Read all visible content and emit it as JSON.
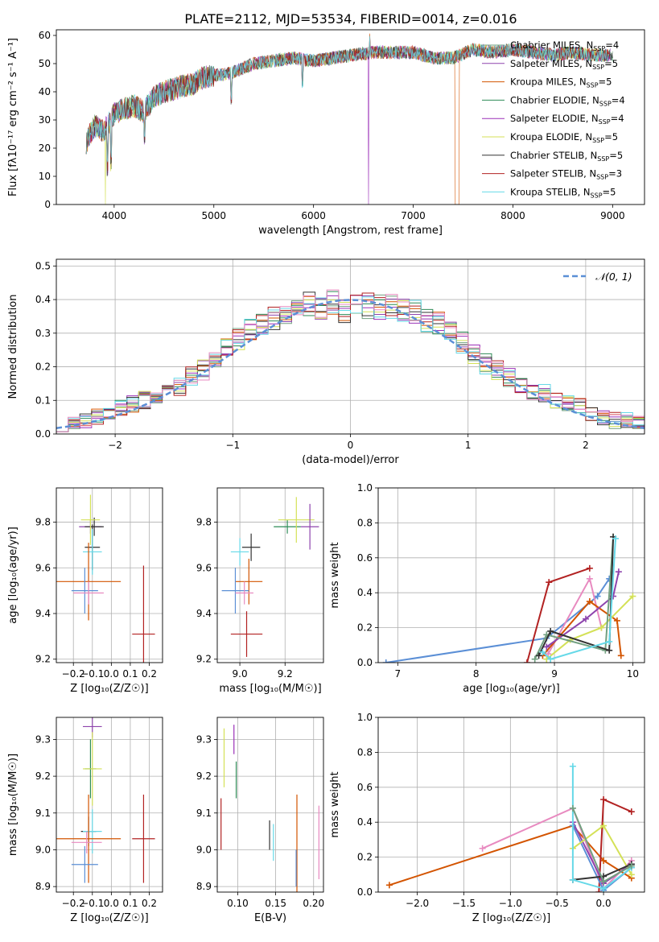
{
  "figure": {
    "title": "PLATE=2112, MJD=53534, FIBERID=0014, z=0.016"
  },
  "colors": {
    "palette": [
      "#72a080",
      "#8e44ad",
      "#d35400",
      "#2e8b57",
      "#9b30b8",
      "#d4e157",
      "#333333",
      "#b22222",
      "#66d9e8"
    ],
    "normal": "#5b8fd6"
  },
  "chart_data": [
    {
      "id": "spectrum",
      "type": "line",
      "title": "PLATE=2112, MJD=53534, FIBERID=0014, z=0.016",
      "xlabel": "wavelength [Angstrom, rest frame]",
      "ylabel": "Flux [fλ10⁻¹⁷ erg cm⁻² s⁻¹ A⁻¹]",
      "xlim": [
        3420,
        9320
      ],
      "ylim": [
        0,
        62
      ],
      "xticks": [
        4000,
        5000,
        6000,
        7000,
        8000,
        9000
      ],
      "yticks": [
        0,
        10,
        20,
        30,
        40,
        50,
        60
      ],
      "grid": false,
      "legend": "top-right",
      "continuum": {
        "x": [
          3720,
          3800,
          3900,
          4000,
          4100,
          4200,
          4300,
          4400,
          4500,
          4600,
          4700,
          4800,
          4900,
          5000,
          5100,
          5200,
          5400,
          5600,
          5800,
          6000,
          6200,
          6400,
          6600,
          6800,
          7000,
          7200,
          7400,
          7600,
          7800,
          8000,
          8200,
          8400,
          8600,
          8800,
          9000
        ],
        "y": [
          22,
          28,
          26,
          32,
          34,
          35,
          33,
          38,
          40,
          41,
          42,
          43,
          45,
          46,
          46,
          47,
          50,
          51,
          52,
          51,
          52,
          53,
          54,
          54,
          54,
          52,
          52,
          55,
          54,
          55,
          54,
          53,
          54,
          53,
          53
        ]
      },
      "series": [
        {
          "name": "Chabrier MILES, N_SSP=4",
          "color": "#72a080"
        },
        {
          "name": "Salpeter MILES, N_SSP=5",
          "color": "#8e44ad"
        },
        {
          "name": "Kroupa MILES, N_SSP=5",
          "color": "#d35400"
        },
        {
          "name": "Chabrier ELODIE, N_SSP=4",
          "color": "#2e8b57"
        },
        {
          "name": "Salpeter ELODIE, N_SSP=4",
          "color": "#9b30b8"
        },
        {
          "name": "Kroupa ELODIE, N_SSP=5",
          "color": "#d4e157"
        },
        {
          "name": "Chabrier STELIB, N_SSP=5",
          "color": "#333333"
        },
        {
          "name": "Salpeter STELIB, N_SSP=3",
          "color": "#b22222"
        },
        {
          "name": "Kroupa STELIB, N_SSP=5",
          "color": "#66d9e8"
        }
      ],
      "legend_labels": [
        {
          "pre": "Chabrier MILES, N",
          "sub": "SSP",
          "post": "=4"
        },
        {
          "pre": "Salpeter MILES, N",
          "sub": "SSP",
          "post": "=5"
        },
        {
          "pre": "Kroupa MILES, N",
          "sub": "SSP",
          "post": "=5"
        },
        {
          "pre": "Chabrier ELODIE, N",
          "sub": "SSP",
          "post": "=4"
        },
        {
          "pre": "Salpeter ELODIE, N",
          "sub": "SSP",
          "post": "=4"
        },
        {
          "pre": "Kroupa ELODIE, N",
          "sub": "SSP",
          "post": "=5"
        },
        {
          "pre": "Chabrier STELIB, N",
          "sub": "SSP",
          "post": "=5"
        },
        {
          "pre": "Salpeter STELIB, N",
          "sub": "SSP",
          "post": "=3"
        },
        {
          "pre": "Kroupa STELIB, N",
          "sub": "SSP",
          "post": "=5"
        }
      ]
    },
    {
      "id": "residuals",
      "type": "line",
      "xlabel": "(data-model)/error",
      "ylabel": "Normed distribution",
      "xlim": [
        -2.5,
        2.5
      ],
      "ylim": [
        0,
        0.52
      ],
      "xticks": [
        -2,
        -1,
        0,
        1,
        2
      ],
      "yticks": [
        0.0,
        0.1,
        0.2,
        0.3,
        0.4,
        0.5
      ],
      "grid": true,
      "legend": "top-right",
      "normal_label": "𝒩(0, 1)",
      "hist_centers": [
        -2.45,
        -2.35,
        -2.25,
        -2.15,
        -2.05,
        -1.95,
        -1.85,
        -1.75,
        -1.65,
        -1.55,
        -1.45,
        -1.35,
        -1.25,
        -1.15,
        -1.05,
        -0.95,
        -0.85,
        -0.75,
        -0.65,
        -0.55,
        -0.45,
        -0.35,
        -0.25,
        -0.15,
        -0.05,
        0.05,
        0.15,
        0.25,
        0.35,
        0.45,
        0.55,
        0.65,
        0.75,
        0.85,
        0.95,
        1.05,
        1.15,
        1.25,
        1.35,
        1.45,
        1.55,
        1.65,
        1.75,
        1.85,
        1.95,
        2.05,
        2.15,
        2.25,
        2.35,
        2.45
      ],
      "base_hist": [
        0.03,
        0.04,
        0.04,
        0.05,
        0.06,
        0.08,
        0.09,
        0.1,
        0.12,
        0.13,
        0.14,
        0.17,
        0.19,
        0.22,
        0.25,
        0.28,
        0.31,
        0.32,
        0.34,
        0.36,
        0.38,
        0.39,
        0.37,
        0.39,
        0.37,
        0.39,
        0.38,
        0.38,
        0.38,
        0.37,
        0.36,
        0.34,
        0.33,
        0.31,
        0.27,
        0.24,
        0.21,
        0.19,
        0.17,
        0.15,
        0.13,
        0.12,
        0.1,
        0.09,
        0.08,
        0.06,
        0.05,
        0.04,
        0.04,
        0.03
      ],
      "normal_pdf_mu": 0,
      "normal_pdf_sigma": 1
    },
    {
      "id": "age-vs-Z",
      "type": "scatter",
      "xlabel": "Z [log₁₀(Z/Z☉)]",
      "ylabel": "age  [log₁₀(age/yr)]",
      "xlim": [
        -0.29,
        0.27
      ],
      "ylim": [
        9.185,
        9.95
      ],
      "xticks": [
        -0.2,
        -0.1,
        0.0,
        0.1,
        0.2
      ],
      "yticks": [
        9.2,
        9.4,
        9.6,
        9.8
      ],
      "grid": true,
      "points": [
        {
          "x": -0.11,
          "y": 9.78,
          "xerr": 0.06,
          "yerr": 0.03,
          "color": "#8e44ad"
        },
        {
          "x": -0.09,
          "y": 9.78,
          "xerr": 0.05,
          "yerr": 0.04,
          "color": "#333333"
        },
        {
          "x": -0.11,
          "y": 9.81,
          "xerr": 0.05,
          "yerr": 0.11,
          "color": "#d4e157"
        },
        {
          "x": -0.1,
          "y": 9.69,
          "xerr": 0.04,
          "yerr": 0.1,
          "color": "#333333"
        },
        {
          "x": -0.1,
          "y": 9.67,
          "xerr": 0.05,
          "yerr": 0.1,
          "color": "#66d9e8"
        },
        {
          "x": -0.12,
          "y": 9.54,
          "xerr": 0.17,
          "yerr": 0.17,
          "color": "#d35400"
        },
        {
          "x": -0.14,
          "y": 9.5,
          "xerr": 0.07,
          "yerr": 0.1,
          "color": "#5b8fd6"
        },
        {
          "x": -0.12,
          "y": 9.49,
          "xerr": 0.08,
          "yerr": 0.05,
          "color": "#e88ac0"
        },
        {
          "x": 0.17,
          "y": 9.31,
          "xerr": 0.06,
          "yerr": 0.3,
          "color": "#b22222"
        }
      ]
    },
    {
      "id": "age-vs-mass",
      "type": "scatter",
      "xlabel": "mass [log₁₀(M/M☉)]",
      "ylabel": "",
      "xlim": [
        8.9,
        9.37
      ],
      "ylim": [
        9.185,
        9.95
      ],
      "xticks": [
        9.0,
        9.2
      ],
      "yticks": [
        9.2,
        9.4,
        9.6,
        9.8
      ],
      "grid": true,
      "points": [
        {
          "x": 9.21,
          "y": 9.78,
          "xerr": 0.06,
          "yerr": 0.03,
          "color": "#2e8b57"
        },
        {
          "x": 9.25,
          "y": 9.81,
          "xerr": 0.08,
          "yerr": 0.1,
          "color": "#d4e157"
        },
        {
          "x": 9.31,
          "y": 9.78,
          "xerr": 0.04,
          "yerr": 0.1,
          "color": "#8e44ad"
        },
        {
          "x": 9.05,
          "y": 9.69,
          "xerr": 0.04,
          "yerr": 0.06,
          "color": "#333333"
        },
        {
          "x": 9.0,
          "y": 9.67,
          "xerr": 0.04,
          "yerr": 0.06,
          "color": "#66d9e8"
        },
        {
          "x": 9.04,
          "y": 9.54,
          "xerr": 0.06,
          "yerr": 0.1,
          "color": "#d35400"
        },
        {
          "x": 8.98,
          "y": 9.5,
          "xerr": 0.06,
          "yerr": 0.1,
          "color": "#5b8fd6"
        },
        {
          "x": 9.02,
          "y": 9.49,
          "xerr": 0.04,
          "yerr": 0.05,
          "color": "#e88ac0"
        },
        {
          "x": 9.03,
          "y": 9.31,
          "xerr": 0.07,
          "yerr": 0.1,
          "color": "#b22222"
        }
      ]
    },
    {
      "id": "massweight-vs-age",
      "type": "line",
      "xlabel": "age  [log₁₀(age/yr)]",
      "ylabel": "mass weight",
      "xlim": [
        6.75,
        10.15
      ],
      "ylim": [
        0,
        1.0
      ],
      "xticks": [
        7,
        8,
        9,
        10
      ],
      "yticks": [
        0.0,
        0.2,
        0.4,
        0.6,
        0.8,
        1.0
      ],
      "grid": true,
      "series": [
        {
          "color": "#5b8fd6",
          "x": [
            6.85,
            8.9,
            9.55,
            9.7
          ],
          "y": [
            0.0,
            0.14,
            0.38,
            0.48
          ]
        },
        {
          "color": "#b22222",
          "x": [
            8.65,
            8.93,
            9.45
          ],
          "y": [
            0.0,
            0.46,
            0.54
          ]
        },
        {
          "color": "#e88ac0",
          "x": [
            8.92,
            9.45,
            9.6
          ],
          "y": [
            0.05,
            0.48,
            0.2
          ]
        },
        {
          "color": "#d35400",
          "x": [
            8.85,
            9.45,
            9.8,
            9.85
          ],
          "y": [
            0.04,
            0.35,
            0.24,
            0.04
          ]
        },
        {
          "color": "#d4e157",
          "x": [
            8.9,
            9.2,
            9.6,
            10.0
          ],
          "y": [
            0.02,
            0.13,
            0.2,
            0.38
          ]
        },
        {
          "color": "#8e44ad",
          "x": [
            8.9,
            9.4,
            9.75,
            9.82
          ],
          "y": [
            0.09,
            0.25,
            0.38,
            0.52
          ]
        },
        {
          "color": "#72a080",
          "x": [
            8.75,
            8.9,
            9.65,
            9.75
          ],
          "y": [
            0.02,
            0.16,
            0.07,
            0.72
          ]
        },
        {
          "color": "#333333",
          "x": [
            8.8,
            8.95,
            9.7,
            9.75
          ],
          "y": [
            0.04,
            0.18,
            0.07,
            0.72
          ]
        },
        {
          "color": "#66d9e8",
          "x": [
            8.85,
            8.95,
            9.7,
            9.78
          ],
          "y": [
            0.06,
            0.02,
            0.12,
            0.71
          ]
        }
      ]
    },
    {
      "id": "mass-vs-Z",
      "type": "scatter",
      "xlabel": "Z [log₁₀(Z/Z☉)]",
      "ylabel": "mass [log₁₀(M/M☉)]",
      "xlim": [
        -0.29,
        0.27
      ],
      "ylim": [
        8.885,
        9.36
      ],
      "xticks": [
        -0.2,
        -0.1,
        0.0,
        0.1,
        0.2
      ],
      "yticks": [
        8.9,
        9.0,
        9.1,
        9.2,
        9.3
      ],
      "grid": true,
      "points": [
        {
          "x": -0.1,
          "y": 9.335,
          "xerr": 0.05,
          "yerr": 0.03,
          "color": "#8e44ad"
        },
        {
          "x": -0.11,
          "y": 9.22,
          "xerr": 0.03,
          "yerr": 0.08,
          "color": "#2e8b57"
        },
        {
          "x": -0.1,
          "y": 9.22,
          "xerr": 0.05,
          "yerr": 0.1,
          "color": "#d4e157"
        },
        {
          "x": -0.12,
          "y": 9.05,
          "xerr": 0.04,
          "yerr": 0.04,
          "color": "#333333"
        },
        {
          "x": -0.1,
          "y": 9.05,
          "xerr": 0.05,
          "yerr": 0.06,
          "color": "#66d9e8"
        },
        {
          "x": -0.12,
          "y": 9.03,
          "xerr": 0.17,
          "yerr": 0.12,
          "color": "#d35400"
        },
        {
          "x": -0.14,
          "y": 8.96,
          "xerr": 0.07,
          "yerr": 0.05,
          "color": "#5b8fd6"
        },
        {
          "x": -0.13,
          "y": 9.02,
          "xerr": 0.08,
          "yerr": 0.03,
          "color": "#e88ac0"
        },
        {
          "x": 0.17,
          "y": 9.03,
          "xerr": 0.06,
          "yerr": 0.12,
          "color": "#b22222"
        }
      ]
    },
    {
      "id": "mass-vs-EBV",
      "type": "scatter",
      "xlabel": "E(B-V)",
      "ylabel": "",
      "xlim": [
        0.073,
        0.213
      ],
      "ylim": [
        8.885,
        9.36
      ],
      "xticks": [
        0.1,
        0.15,
        0.2
      ],
      "yticks": [
        8.9,
        9.0,
        9.1,
        9.2,
        9.3
      ],
      "grid": true,
      "points": [
        {
          "x": 0.095,
          "y": 9.3,
          "yerr": 0.04,
          "color": "#9b30b8"
        },
        {
          "x": 0.098,
          "y": 9.19,
          "yerr": 0.05,
          "color": "#2e8b57"
        },
        {
          "x": 0.082,
          "y": 9.25,
          "yerr": 0.08,
          "color": "#d4e157"
        },
        {
          "x": 0.078,
          "y": 9.07,
          "yerr": 0.07,
          "color": "#b22222"
        },
        {
          "x": 0.142,
          "y": 9.04,
          "yerr": 0.04,
          "color": "#333333"
        },
        {
          "x": 0.147,
          "y": 9.02,
          "yerr": 0.05,
          "color": "#66d9e8"
        },
        {
          "x": 0.178,
          "y": 9.0,
          "yerr": 0.15,
          "color": "#d35400"
        },
        {
          "x": 0.177,
          "y": 8.95,
          "yerr": 0.05,
          "color": "#5b8fd6"
        },
        {
          "x": 0.207,
          "y": 9.02,
          "yerr": 0.1,
          "color": "#e88ac0"
        }
      ]
    },
    {
      "id": "massweight-vs-Z",
      "type": "line",
      "xlabel": "Z [log₁₀(Z/Z☉)]",
      "ylabel": "mass weight",
      "xlim": [
        -2.42,
        0.44
      ],
      "ylim": [
        0,
        1.0
      ],
      "xticks": [
        -2.0,
        -1.5,
        -1.0,
        -0.5,
        0.0
      ],
      "yticks": [
        0.0,
        0.2,
        0.4,
        0.6,
        0.8,
        1.0
      ],
      "grid": true,
      "series": [
        {
          "color": "#d35400",
          "x": [
            -2.3,
            -0.33,
            0.0,
            0.3
          ],
          "y": [
            0.04,
            0.38,
            0.18,
            0.08
          ]
        },
        {
          "color": "#e88ac0",
          "x": [
            -1.3,
            -0.33,
            0.0,
            0.3
          ],
          "y": [
            0.25,
            0.48,
            0.02,
            0.18
          ]
        },
        {
          "color": "#b22222",
          "x": [
            -0.05,
            0.0,
            0.3
          ],
          "y": [
            0.0,
            0.53,
            0.46
          ]
        },
        {
          "color": "#8e44ad",
          "x": [
            -0.33,
            0.0,
            0.3
          ],
          "y": [
            0.4,
            0.05,
            0.16
          ]
        },
        {
          "color": "#5b8fd6",
          "x": [
            -0.33,
            0.0,
            0.3
          ],
          "y": [
            0.38,
            0.01,
            0.14
          ]
        },
        {
          "color": "#d4e157",
          "x": [
            -0.33,
            0.0,
            0.3
          ],
          "y": [
            0.25,
            0.38,
            0.1
          ]
        },
        {
          "color": "#333333",
          "x": [
            -0.33,
            0.0,
            0.3
          ],
          "y": [
            0.07,
            0.09,
            0.16
          ]
        },
        {
          "color": "#66d9e8",
          "x": [
            -0.33,
            -0.33,
            0.0,
            0.3
          ],
          "y": [
            0.72,
            0.07,
            0.02,
            0.14
          ]
        },
        {
          "color": "#72a080",
          "x": [
            -0.33,
            0.0,
            0.3
          ],
          "y": [
            0.48,
            0.06,
            0.15
          ]
        }
      ]
    }
  ]
}
